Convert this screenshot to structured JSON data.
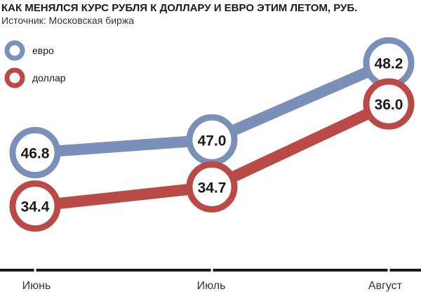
{
  "chart_data": {
    "type": "line",
    "title": "КАК МЕНЯЛСЯ КУРС РУБЛЯ К ДОЛЛАРУ И ЕВРО ЭТИМ ЛЕТОМ, РУБ.",
    "subtitle": "Источник: Московская биржа",
    "categories": [
      "Июнь",
      "Июль",
      "Август"
    ],
    "series": [
      {
        "name": "евро",
        "color": "#7a90b8",
        "values": [
          46.8,
          47.0,
          48.2
        ],
        "labels": [
          "46.8",
          "47.0",
          "48.2"
        ]
      },
      {
        "name": "доллар",
        "color": "#b94a45",
        "values": [
          34.4,
          34.7,
          36.0
        ],
        "labels": [
          "34.4",
          "34.7",
          "36.0"
        ]
      }
    ],
    "legend_position": "top-left",
    "grid": false,
    "y_axis_visible": false,
    "axis_color": "#1a1a1a"
  }
}
